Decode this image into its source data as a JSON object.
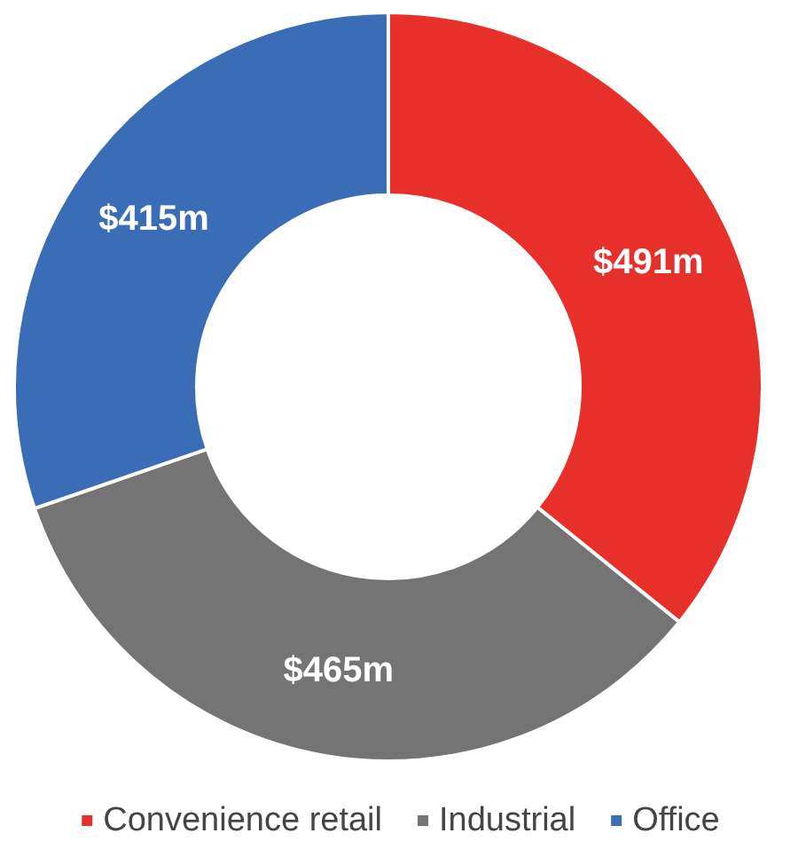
{
  "chart_data": {
    "type": "donut",
    "categories": [
      "Convenience retail",
      "Industrial",
      "Office"
    ],
    "values": [
      491,
      465,
      415
    ],
    "colors": [
      "#e8302a",
      "#737473",
      "#3a6db5"
    ],
    "value_labels": [
      "$491m",
      "$465m",
      "$415m"
    ],
    "legend": "bottom"
  }
}
